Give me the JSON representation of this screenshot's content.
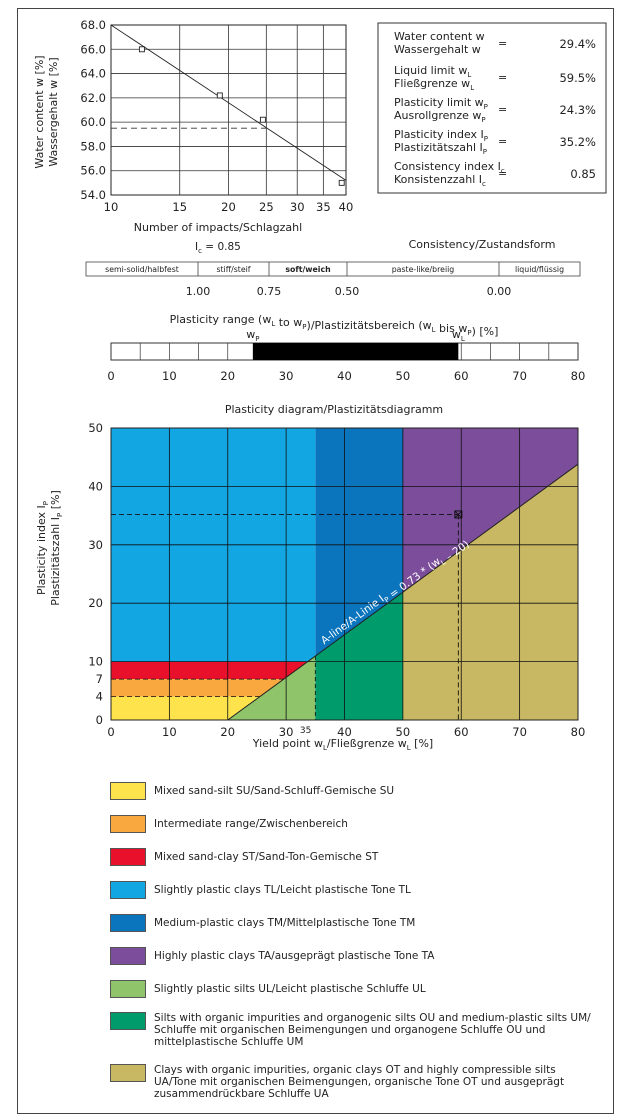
{
  "info_box": {
    "rows": [
      {
        "label1": "Water content w",
        "label2": "Wassergehalt w",
        "value": "29.4%"
      },
      {
        "label1": "Liquid limit w_L",
        "label2": "Fließgrenze w_L",
        "value": "59.5%"
      },
      {
        "label1": "Plasticity limit w_P",
        "label2": "Ausrollgrenze w_P",
        "value": "24.3%"
      },
      {
        "label1": "Plasticity index I_P",
        "label2": "Plastizitätszahl I_P",
        "value": "35.2%"
      },
      {
        "label1": "Consistency index I_c",
        "label2": "Konsistenzzahl I_c",
        "value": "0.85"
      }
    ],
    "equals": "="
  },
  "consistency": {
    "ic_label": "I_c = 0.85",
    "title": "Consistency/Zustandsform",
    "segments": [
      "semi-solid/halbfest",
      "stiff/steif",
      "soft/weich",
      "paste-like/breiig",
      "liquid/flüssig"
    ],
    "ticks": [
      "1.00",
      "0.75",
      "0.50",
      "0.00"
    ]
  },
  "plasticity_range": {
    "title": "Plasticity range (w_L to w_P)/Plastizitätsbereich (w_L bis w_P)  [%]",
    "wp_label": "w_P",
    "wl_label": "w_L",
    "from": 24.3,
    "to": 59.5,
    "ticks": [
      "0",
      "10",
      "20",
      "30",
      "40",
      "50",
      "60",
      "70",
      "80"
    ]
  },
  "plasticity_diagram": {
    "title": "Plasticity diagram/Plastizitätsdiagramm",
    "a_line_label": "A-line/A-Linie I_P = 0.73 * (w_L – 20)",
    "marker_35": "35"
  },
  "colors": {
    "SU": "#ffe34d",
    "intermediate": "#f8a83e",
    "ST": "#e8102a",
    "TL": "#12a6e2",
    "TM": "#0a74bd",
    "TA": "#7b4d9b",
    "UL": "#90c46a",
    "OU_UM": "#009b6a",
    "OT_UA": "#c8b863"
  },
  "legend": [
    {
      "key": "SU",
      "text": "Mixed sand-silt SU/Sand-Schluff-Gemische SU"
    },
    {
      "key": "intermediate",
      "text": "Intermediate range/Zwischenbereich"
    },
    {
      "key": "ST",
      "text": "Mixed sand-clay ST/Sand-Ton-Gemische ST"
    },
    {
      "key": "TL",
      "text": "Slightly plastic clays TL/Leicht plastische Tone TL"
    },
    {
      "key": "TM",
      "text": "Medium-plastic clays TM/Mittelplastische Tone TM"
    },
    {
      "key": "TA",
      "text": "Highly plastic clays TA/ausgeprägt plastische Tone TA"
    },
    {
      "key": "UL",
      "text": "Slightly plastic silts UL/Leicht plastische Schluffe UL"
    },
    {
      "key": "OU_UM",
      "text": "Silts with organic impurities and organogenic silts OU and medium-plastic silts UM/ Schluffe mit organischen Beimengungen und organogene Schluffe OU und mittelplastische Schluffe UM"
    },
    {
      "key": "OT_UA",
      "text": "Clays with organic impurities, organic clays OT and highly compressible silts UA/Tone mit organischen Beimengungen, organische Tone OT und ausgeprägt zusammendrückbare Schluffe UA"
    }
  ],
  "chart_data": [
    {
      "type": "scatter",
      "title": "",
      "xlabel": "Number of impacts/Schlagzahl",
      "ylabel": "Water content w [%] / Wassergehalt w [%]",
      "x_scale": "log",
      "xlim": [
        10,
        40
      ],
      "ylim": [
        54.0,
        68.0
      ],
      "x_ticks": [
        "10",
        "15",
        "20",
        "25",
        "30",
        "35",
        "40"
      ],
      "y_ticks": [
        "54.0",
        "56.0",
        "58.0",
        "60.0",
        "62.0",
        "64.0",
        "66.0",
        "68.0"
      ],
      "points": [
        {
          "x": 12,
          "y": 66.0
        },
        {
          "x": 19,
          "y": 62.2
        },
        {
          "x": 24.5,
          "y": 60.2
        },
        {
          "x": 39,
          "y": 55.0
        }
      ],
      "fit_line": [
        {
          "x": 10,
          "y": 68.0
        },
        {
          "x": 40,
          "y": 55.2
        }
      ],
      "liquid_limit_line_y": 59.5,
      "grid": true
    },
    {
      "type": "area",
      "title": "Plasticity diagram/Plastizitätsdiagramm",
      "xlabel": "Yield point w_L/Fließgrenze w_L  [%]",
      "ylabel": "Plasticity index I_P / Plastizitätszahl I_P [%]",
      "xlim": [
        0,
        80
      ],
      "ylim": [
        0,
        50
      ],
      "x_ticks": [
        "0",
        "10",
        "20",
        "30",
        "40",
        "50",
        "60",
        "70",
        "80"
      ],
      "y_ticks": [
        "0",
        "4",
        "7",
        "10",
        "20",
        "30",
        "40",
        "50"
      ],
      "a_line": {
        "formula": "I_P = 0.73 * (w_L - 20)"
      },
      "sample_point": {
        "x": 59.5,
        "y": 35.2
      },
      "grid": true
    }
  ]
}
